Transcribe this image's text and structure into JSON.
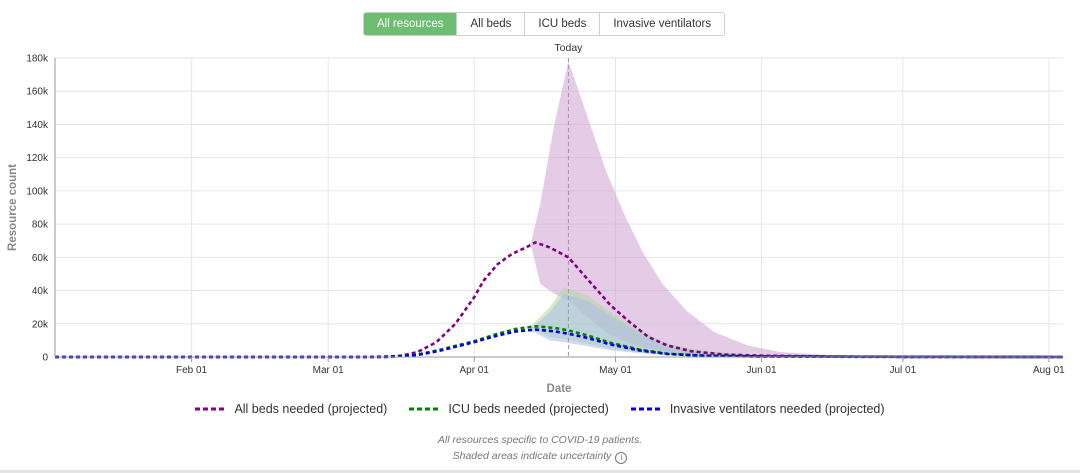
{
  "tabs": [
    {
      "label": "All resources",
      "active": true
    },
    {
      "label": "All beds",
      "active": false
    },
    {
      "label": "ICU beds",
      "active": false
    },
    {
      "label": "Invasive ventilators",
      "active": false
    }
  ],
  "chart_data": {
    "type": "line",
    "title": "",
    "xlabel": "Date",
    "ylabel": "Resource count",
    "x_range": [
      "2020-01-03",
      "2020-08-04"
    ],
    "ylim": [
      0,
      180000
    ],
    "y_ticks": [
      0,
      20000,
      40000,
      60000,
      80000,
      100000,
      120000,
      140000,
      160000,
      180000
    ],
    "y_tick_labels": [
      "0",
      "20k",
      "40k",
      "60k",
      "80k",
      "100k",
      "120k",
      "140k",
      "160k",
      "180k"
    ],
    "x_ticks": [
      "2020-02-01",
      "2020-03-01",
      "2020-04-01",
      "2020-05-01",
      "2020-06-01",
      "2020-07-01",
      "2020-08-01"
    ],
    "x_tick_labels": [
      "Feb 01",
      "Mar 01",
      "Apr 01",
      "May 01",
      "Jun 01",
      "Jul 01",
      "Aug 01"
    ],
    "grid": true,
    "legend_position": "bottom",
    "today": {
      "label": "Today",
      "date": "2020-04-21"
    },
    "series": [
      {
        "name": "All beds needed (projected)",
        "color": "#800080",
        "band_color": "#cfa3d2",
        "points": [
          [
            "2020-01-03",
            0
          ],
          [
            "2020-03-09",
            0
          ],
          [
            "2020-03-16",
            500
          ],
          [
            "2020-03-20",
            3000
          ],
          [
            "2020-03-24",
            9000
          ],
          [
            "2020-03-28",
            20000
          ],
          [
            "2020-04-01",
            36000
          ],
          [
            "2020-04-03",
            46000
          ],
          [
            "2020-04-06",
            56000
          ],
          [
            "2020-04-09",
            62000
          ],
          [
            "2020-04-12",
            66000
          ],
          [
            "2020-04-14",
            69000
          ],
          [
            "2020-04-17",
            66000
          ],
          [
            "2020-04-21",
            60000
          ],
          [
            "2020-04-25",
            47000
          ],
          [
            "2020-04-30",
            31000
          ],
          [
            "2020-05-04",
            21000
          ],
          [
            "2020-05-08",
            12000
          ],
          [
            "2020-05-12",
            7000
          ],
          [
            "2020-05-17",
            3500
          ],
          [
            "2020-05-24",
            1500
          ],
          [
            "2020-06-01",
            800
          ],
          [
            "2020-06-15",
            300
          ],
          [
            "2020-07-01",
            100
          ],
          [
            "2020-08-04",
            0
          ]
        ],
        "uncertainty": [
          [
            "2020-04-13",
            68000,
            68000
          ],
          [
            "2020-04-15",
            44000,
            92000
          ],
          [
            "2020-04-18",
            38000,
            140000
          ],
          [
            "2020-04-21",
            34000,
            178000
          ],
          [
            "2020-04-25",
            24000,
            145000
          ],
          [
            "2020-04-29",
            15000,
            112000
          ],
          [
            "2020-05-03",
            9500,
            85000
          ],
          [
            "2020-05-07",
            6000,
            62000
          ],
          [
            "2020-05-11",
            3500,
            44000
          ],
          [
            "2020-05-16",
            1800,
            28000
          ],
          [
            "2020-05-22",
            900,
            15000
          ],
          [
            "2020-05-29",
            500,
            7000
          ],
          [
            "2020-06-05",
            300,
            3000
          ],
          [
            "2020-06-15",
            150,
            1200
          ],
          [
            "2020-07-01",
            50,
            400
          ],
          [
            "2020-08-04",
            0,
            100
          ]
        ]
      },
      {
        "name": "ICU beds needed (projected)",
        "color": "#008000",
        "band_color": "#b5d99e",
        "points": [
          [
            "2020-01-03",
            0
          ],
          [
            "2020-03-13",
            0
          ],
          [
            "2020-03-20",
            1500
          ],
          [
            "2020-03-25",
            4500
          ],
          [
            "2020-04-01",
            9500
          ],
          [
            "2020-04-06",
            14000
          ],
          [
            "2020-04-10",
            17000
          ],
          [
            "2020-04-14",
            18500
          ],
          [
            "2020-04-18",
            17500
          ],
          [
            "2020-04-21",
            16000
          ],
          [
            "2020-04-25",
            13000
          ],
          [
            "2020-04-30",
            8500
          ],
          [
            "2020-05-06",
            4500
          ],
          [
            "2020-05-12",
            2000
          ],
          [
            "2020-05-20",
            800
          ],
          [
            "2020-06-01",
            300
          ],
          [
            "2020-07-01",
            50
          ],
          [
            "2020-08-04",
            0
          ]
        ],
        "uncertainty": [
          [
            "2020-04-13",
            18000,
            18500
          ],
          [
            "2020-04-17",
            12000,
            30000
          ],
          [
            "2020-04-20",
            11000,
            42000
          ],
          [
            "2020-04-25",
            8000,
            37000
          ],
          [
            "2020-04-30",
            5000,
            27000
          ],
          [
            "2020-05-06",
            2800,
            16000
          ],
          [
            "2020-05-12",
            1400,
            8000
          ],
          [
            "2020-05-20",
            600,
            3500
          ],
          [
            "2020-06-01",
            200,
            1200
          ],
          [
            "2020-07-01",
            30,
            200
          ],
          [
            "2020-08-04",
            0,
            50
          ]
        ]
      },
      {
        "name": "Invasive ventilators needed (projected)",
        "color": "#0000e0",
        "band_color": "#a9bde8",
        "points": [
          [
            "2020-01-03",
            0
          ],
          [
            "2020-03-13",
            0
          ],
          [
            "2020-03-20",
            1200
          ],
          [
            "2020-03-25",
            4000
          ],
          [
            "2020-04-01",
            9000
          ],
          [
            "2020-04-06",
            13000
          ],
          [
            "2020-04-10",
            15500
          ],
          [
            "2020-04-14",
            16500
          ],
          [
            "2020-04-18",
            15500
          ],
          [
            "2020-04-21",
            14000
          ],
          [
            "2020-04-25",
            11500
          ],
          [
            "2020-04-30",
            7500
          ],
          [
            "2020-05-06",
            4000
          ],
          [
            "2020-05-12",
            1800
          ],
          [
            "2020-05-20",
            700
          ],
          [
            "2020-06-01",
            250
          ],
          [
            "2020-07-01",
            40
          ],
          [
            "2020-08-04",
            0
          ]
        ],
        "uncertainty": [
          [
            "2020-04-13",
            16000,
            16500
          ],
          [
            "2020-04-17",
            10000,
            27000
          ],
          [
            "2020-04-20",
            9000,
            38000
          ],
          [
            "2020-04-25",
            6500,
            34000
          ],
          [
            "2020-04-30",
            4000,
            25000
          ],
          [
            "2020-05-06",
            2300,
            14500
          ],
          [
            "2020-05-12",
            1100,
            7000
          ],
          [
            "2020-05-20",
            500,
            3000
          ],
          [
            "2020-06-01",
            150,
            1000
          ],
          [
            "2020-07-01",
            20,
            150
          ],
          [
            "2020-08-04",
            0,
            40
          ]
        ]
      }
    ]
  },
  "footnotes": {
    "line1": "All resources specific to COVID-19 patients.",
    "line2": "Shaded areas indicate uncertainty",
    "info_glyph": "i"
  }
}
